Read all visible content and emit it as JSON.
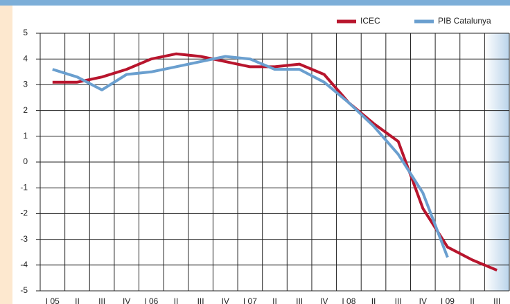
{
  "chart_data": {
    "type": "line",
    "categories": [
      "I 05",
      "II",
      "III",
      "IV",
      "I 06",
      "II",
      "III",
      "IV",
      "I 07",
      "II",
      "III",
      "IV",
      "I 08",
      "II",
      "III",
      "IV",
      "I 09",
      "II",
      "III"
    ],
    "series": [
      {
        "name": "ICEC",
        "color": "#b8152d",
        "values": [
          3.1,
          3.1,
          3.3,
          3.6,
          4.0,
          4.2,
          4.1,
          3.9,
          3.7,
          3.7,
          3.8,
          3.4,
          2.3,
          1.5,
          0.8,
          -1.8,
          -3.3,
          -3.8,
          -4.2
        ]
      },
      {
        "name": "PIB Catalunya",
        "color": "#6a9fcf",
        "values": [
          3.6,
          3.3,
          2.8,
          3.4,
          3.5,
          3.7,
          3.9,
          4.1,
          4.0,
          3.6,
          3.6,
          3.1,
          2.3,
          1.4,
          0.3,
          -1.2,
          -3.7,
          null,
          null
        ]
      }
    ],
    "ylim": [
      -5,
      5
    ],
    "yticks": [
      -5,
      -4,
      -3,
      -2,
      -1,
      0,
      1,
      2,
      3,
      4,
      5
    ],
    "grid": true,
    "legend": "top-right"
  }
}
